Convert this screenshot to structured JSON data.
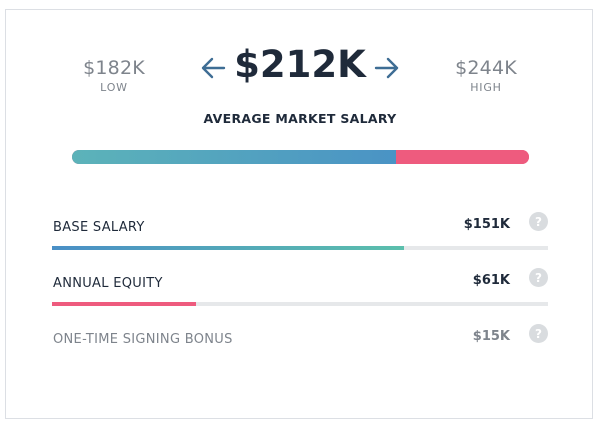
{
  "range": {
    "low_value": "$182K",
    "low_caption": "LOW",
    "high_value": "$244K",
    "high_caption": "HIGH"
  },
  "average": {
    "value": "$212K",
    "caption": "AVERAGE MARKET SALARY"
  },
  "icons": {
    "prev": "arrow-left-icon",
    "next": "arrow-right-icon",
    "help": "question-mark-icon"
  },
  "colors": {
    "base": "#4a93c5",
    "equity": "#ee5b7e",
    "text_dark": "#1f2a3a",
    "text_muted": "#7e848c"
  },
  "composition": {
    "base_fraction": 0.71,
    "equity_fraction": 0.29
  },
  "components": [
    {
      "label": "BASE SALARY",
      "value": "$151K",
      "help": "?",
      "bar_fraction": 0.71
    },
    {
      "label": "ANNUAL EQUITY",
      "value": "$61K",
      "help": "?",
      "bar_fraction": 0.29
    },
    {
      "label": "ONE-TIME SIGNING BONUS",
      "value": "$15K",
      "help": "?"
    }
  ]
}
